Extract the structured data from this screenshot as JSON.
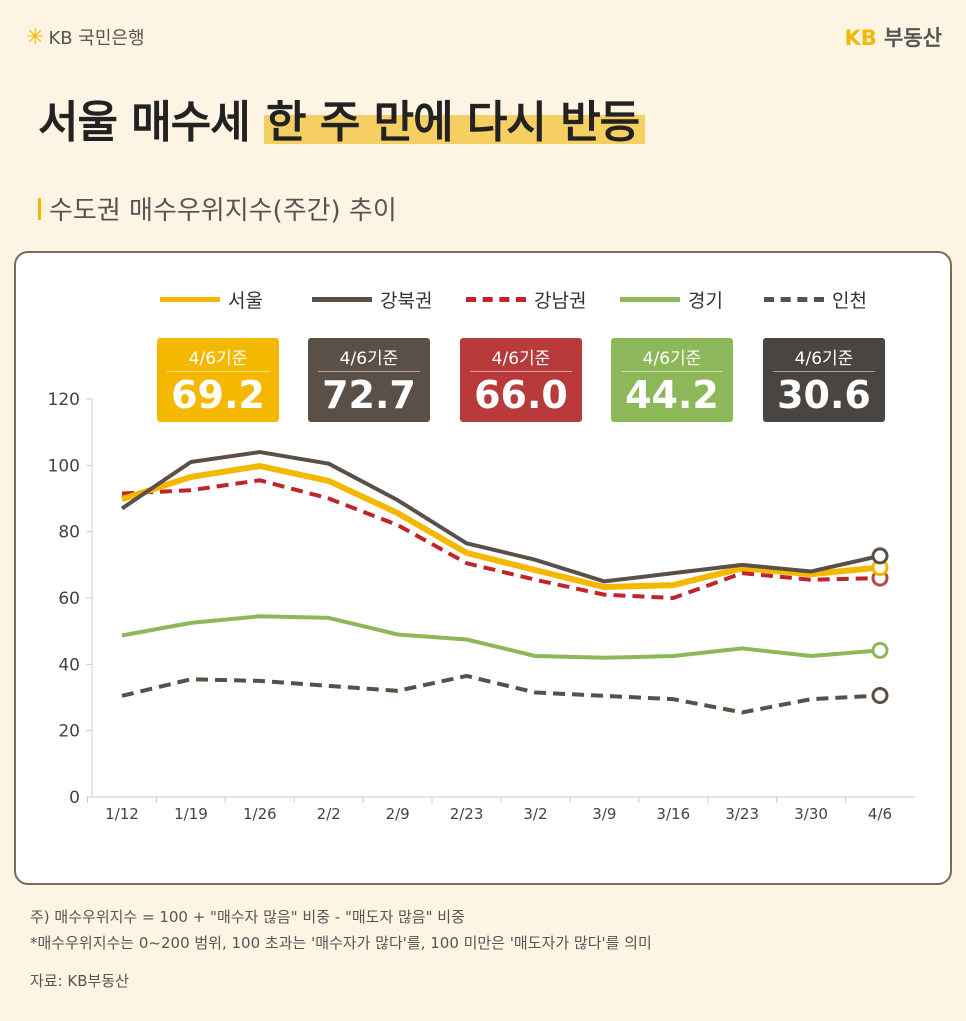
{
  "header": {
    "logo_left": "KB 국민은행",
    "logo_right_kb": "KB",
    "logo_right_text": "부동산"
  },
  "title": {
    "part1": "서울 매수세",
    "part2": "한 주 만에 다시 반등"
  },
  "subtitle": "수도권 매수우위지수(주간) 추이",
  "badges": [
    {
      "date": "4/6기준",
      "value": "69.2",
      "color": "#f5b800"
    },
    {
      "date": "4/6기준",
      "value": "72.7",
      "color": "#5a5048"
    },
    {
      "date": "4/6기준",
      "value": "66.0",
      "color": "#b83a3a"
    },
    {
      "date": "4/6기준",
      "value": "44.2",
      "color": "#8db85a"
    },
    {
      "date": "4/6기준",
      "value": "30.6",
      "color": "#4a4540"
    }
  ],
  "chart_data": {
    "type": "line",
    "categories": [
      "1/12",
      "1/19",
      "1/26",
      "2/2",
      "2/9",
      "2/23",
      "3/2",
      "3/9",
      "3/16",
      "3/23",
      "3/30",
      "4/6"
    ],
    "ylim": [
      0,
      120
    ],
    "yticks": [
      0,
      20,
      40,
      60,
      80,
      100,
      120
    ],
    "grid": false,
    "legend_position": "top",
    "series": [
      {
        "name": "서울",
        "color": "#f5b800",
        "style": "solid",
        "values": [
          89.8,
          96.5,
          99.8,
          95.3,
          85.6,
          73.6,
          68.4,
          63.3,
          63.9,
          69.0,
          67.2,
          69.2
        ]
      },
      {
        "name": "강북권",
        "color": "#5a5048",
        "style": "solid",
        "values": [
          87.0,
          101.0,
          104.0,
          100.5,
          89.5,
          76.5,
          71.5,
          65.0,
          67.5,
          70.0,
          68.0,
          72.7
        ]
      },
      {
        "name": "강남권",
        "color": "#c0252a",
        "style": "dashed",
        "values": [
          91.5,
          92.5,
          95.5,
          90.0,
          82.0,
          70.5,
          65.5,
          61.0,
          60.0,
          67.5,
          65.5,
          66.0
        ]
      },
      {
        "name": "경기",
        "color": "#8db85a",
        "style": "solid",
        "values": [
          48.7,
          52.5,
          54.5,
          54.0,
          49.0,
          47.5,
          42.5,
          42.0,
          42.5,
          44.8,
          42.5,
          44.2
        ]
      },
      {
        "name": "인천",
        "color": "#5a5048",
        "style": "dashed",
        "values": [
          30.5,
          35.5,
          35.0,
          33.5,
          32.0,
          36.5,
          31.5,
          30.5,
          29.5,
          25.5,
          29.5,
          30.6
        ]
      }
    ]
  },
  "notes": {
    "line1": "주) 매수우위지수 = 100 + \"매수자 많음\" 비중 - \"매도자 많음\" 비중",
    "line2": "*매수우위지수는 0~200 범위, 100 초과는 '매수자가 많다'를, 100 미만은 '매도자가 많다'를 의미",
    "source": "자료: KB부동산"
  }
}
